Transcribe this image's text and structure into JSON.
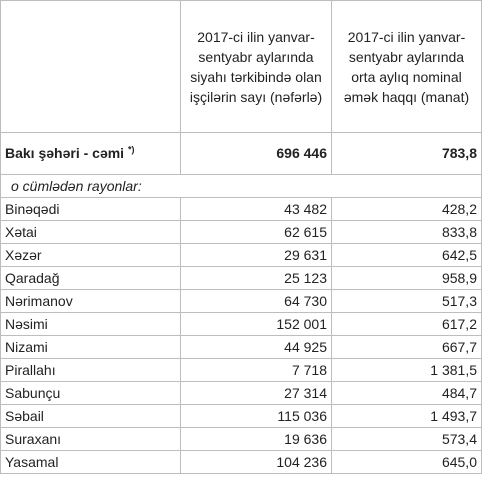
{
  "header": {
    "col1": "",
    "col2": "2017-ci ilin yanvar-sentyabr aylarında siyahı tərkibində olan işçilərin sayı (nəfərlə)",
    "col3": "2017-ci ilin yanvar-sentyabr aylarında orta aylıq nominal əmək haqqı (manat)"
  },
  "total": {
    "label": "Bakı şəhəri - cəmi",
    "footnote": "*)",
    "workers": "696 446",
    "salary": "783,8"
  },
  "subheading": "o cümlədən rayonlar:",
  "rows": [
    {
      "name": "Binəqədi",
      "workers": "43 482",
      "salary": "428,2"
    },
    {
      "name": "Xətai",
      "workers": "62 615",
      "salary": "833,8"
    },
    {
      "name": "Xəzər",
      "workers": "29 631",
      "salary": "642,5"
    },
    {
      "name": "Qaradağ",
      "workers": "25 123",
      "salary": "958,9"
    },
    {
      "name": "Nərimanov",
      "workers": "64 730",
      "salary": "517,3"
    },
    {
      "name": "Nəsimi",
      "workers": "152 001",
      "salary": "617,2"
    },
    {
      "name": "Nizami",
      "workers": "44 925",
      "salary": "667,7"
    },
    {
      "name": "Pirallahı",
      "workers": "7 718",
      "salary": "1 381,5"
    },
    {
      "name": "Sabunçu",
      "workers": "27 314",
      "salary": "484,7"
    },
    {
      "name": "Səbail",
      "workers": "115 036",
      "salary": "1 493,7"
    },
    {
      "name": "Suraxanı",
      "workers": "19 636",
      "salary": "573,4"
    },
    {
      "name": "Yasamal",
      "workers": "104 236",
      "salary": "645,0"
    }
  ]
}
